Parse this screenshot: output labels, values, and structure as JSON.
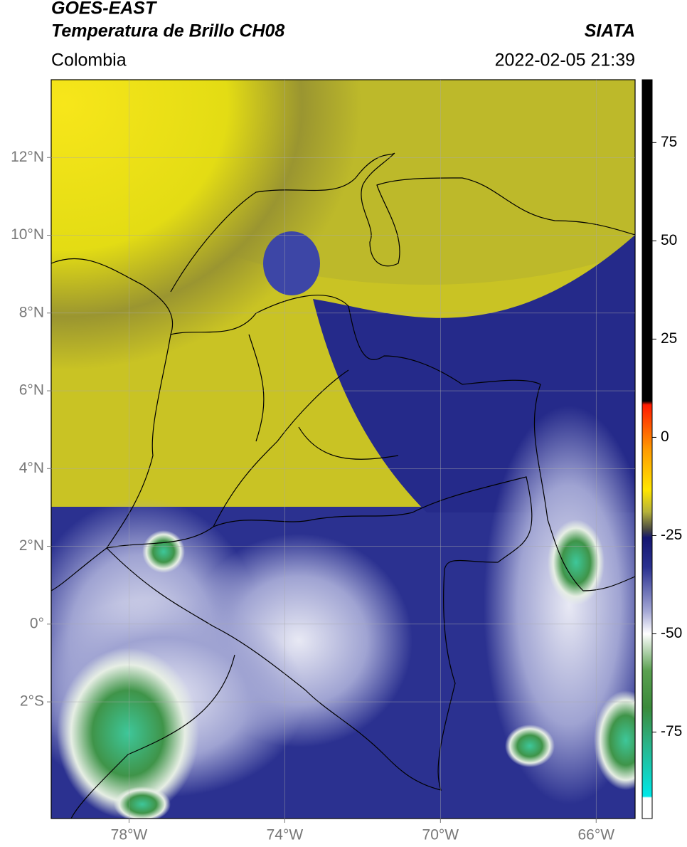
{
  "map": {
    "satellite": "GOES-EAST",
    "title": "Temperatura de Brillo CH08",
    "source": "SIATA",
    "region": "Colombia",
    "datetime": "2022-02-05 21:39",
    "xlim": [
      -80,
      -65
    ],
    "ylim": [
      -5,
      14
    ],
    "xticks": [
      {
        "value": -78,
        "label": "78°W"
      },
      {
        "value": -74,
        "label": "74°W"
      },
      {
        "value": -70,
        "label": "70°W"
      },
      {
        "value": -66,
        "label": "66°W"
      }
    ],
    "yticks": [
      {
        "value": 12,
        "label": "12°N"
      },
      {
        "value": 10,
        "label": "10°N"
      },
      {
        "value": 8,
        "label": "8°N"
      },
      {
        "value": 6,
        "label": "6°N"
      },
      {
        "value": 4,
        "label": "4°N"
      },
      {
        "value": 2,
        "label": "2°N"
      },
      {
        "value": 0,
        "label": "0°"
      },
      {
        "value": -2,
        "label": "2°S"
      }
    ],
    "grid": true,
    "colorbar": {
      "lim": [
        -97,
        91
      ],
      "ticks": [
        75,
        50,
        25,
        0,
        -25,
        -50,
        -75
      ]
    }
  }
}
